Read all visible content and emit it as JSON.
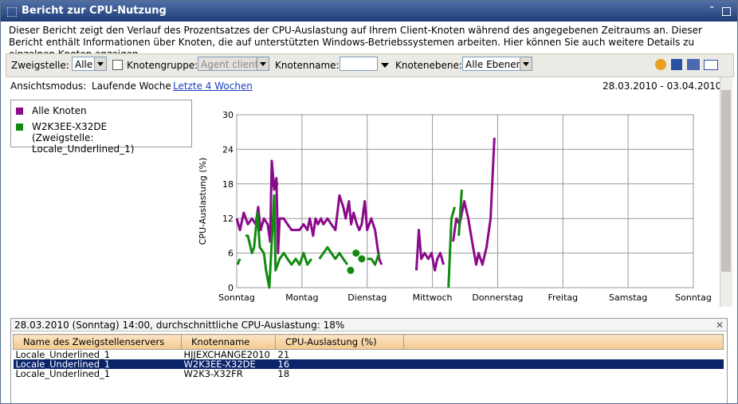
{
  "window": {
    "title": "Bericht zur CPU-Nutzung"
  },
  "description": "Dieser Bericht zeigt den Verlauf des Prozentsatzes der CPU-Auslastung auf Ihrem Client-Knoten während des angegebenen Zeitraums an. Dieser Bericht enthält Informationen über Knoten, die auf unterstützten Windows-Betriebssystemen arbeiten. Hier können Sie auch weitere Details zu einzelnen Knoten anzeigen.",
  "toolbar": {
    "branch_label": "Zweigstelle:",
    "branch_value": "Alle",
    "group_label": "Knotengruppe:",
    "group_value": "Agent client",
    "node_label": "Knotenname:",
    "level_label": "Knotenebene:",
    "level_value": "Alle Ebenen"
  },
  "view": {
    "label": "Ansichtsmodus:",
    "current": "Laufende Woche",
    "link": "Letzte 4 Wochen",
    "range": "28.03.2010 - 03.04.2010"
  },
  "chart_data": {
    "type": "line",
    "ylabel": "CPU-Auslastung  (%)",
    "xlim": [
      0,
      168
    ],
    "xticks": [
      {
        "value": 0,
        "label": "Sonntag"
      },
      {
        "value": 24,
        "label": "Montag"
      },
      {
        "value": 48,
        "label": "Dienstag"
      },
      {
        "value": 72,
        "label": "Mittwoch"
      },
      {
        "value": 96,
        "label": "Donnerstag"
      },
      {
        "value": 120,
        "label": "Freitag"
      },
      {
        "value": 144,
        "label": "Samstag"
      },
      {
        "value": 168,
        "label": "Sonntag"
      }
    ],
    "ylim": [
      0,
      30
    ],
    "yticks": [
      0,
      6,
      12,
      18,
      24,
      30
    ],
    "grid": true,
    "series": [
      {
        "name": "Alle Knoten",
        "color": "#8b0a8b",
        "x": [
          0,
          1.2,
          2.6,
          4.1,
          5.6,
          7,
          7.9,
          8.8,
          10,
          11.4,
          12.3,
          12.9,
          13.8,
          14.6,
          15.2,
          15.8,
          17.3,
          18.7,
          20.2,
          21.7,
          23.1,
          24.6,
          26,
          26.9,
          28.1,
          29,
          29.9,
          31,
          31.9,
          33.4,
          34.8,
          36.3,
          37.8,
          39.2,
          40.1,
          41.3,
          42.1,
          43,
          44.2,
          45.1,
          46,
          47.1,
          48,
          49.5,
          50.9,
          52.4,
          53.3,
          60,
          66.1,
          67,
          67.9,
          69.1,
          70.5,
          71.7,
          72.9,
          73.8,
          74.9,
          76.1,
          77.5,
          79.6,
          80.8,
          82,
          83.7,
          85.2,
          86.6,
          88.1,
          89,
          90.4,
          91.9,
          93.4,
          94.8
        ],
        "values": [
          12,
          10,
          13,
          11,
          12,
          11,
          14,
          10,
          12,
          11,
          8,
          22,
          17,
          19,
          6,
          12,
          12,
          11,
          10,
          10,
          10,
          11,
          10,
          12,
          9,
          12,
          11,
          12,
          11,
          12,
          11,
          10,
          16,
          14,
          12,
          15,
          11,
          13,
          11,
          10,
          11,
          15,
          10,
          12,
          10,
          5,
          4,
          null,
          3,
          10,
          5,
          6,
          5,
          6,
          3,
          5,
          6,
          4,
          null,
          8,
          12,
          11,
          15,
          12,
          8,
          4,
          6,
          4,
          7,
          12,
          26
        ],
        "points": {
          "x": [
            14
          ],
          "values": [
            18
          ]
        }
      },
      {
        "name": "W2K3EE-X32DE\n(Zweigstelle: Locale_Underlined_1)",
        "color": "#108a10",
        "x": [
          0.3,
          1.2,
          2,
          3.2,
          4.1,
          5.6,
          6.4,
          7.6,
          8.5,
          10,
          10.8,
          12,
          13.8,
          14.3,
          15.8,
          17.3,
          18.7,
          20.2,
          21.7,
          23.1,
          24.6,
          26,
          27.5,
          29,
          30.4,
          31.9,
          33.4,
          34.8,
          36.3,
          37.8,
          39.2,
          40.7,
          43.6,
          48,
          49.5,
          50.9,
          52.4,
          65.6,
          77.9,
          79,
          80.2,
          80.8,
          81.7,
          82.8
        ],
        "values": [
          4,
          5,
          null,
          9,
          9,
          6,
          7,
          13,
          7,
          6,
          3,
          0,
          16,
          3,
          5,
          6,
          5,
          4,
          5,
          4,
          6,
          4,
          5,
          null,
          5,
          6,
          7,
          6,
          5,
          6,
          5,
          4,
          null,
          5,
          5,
          4,
          6,
          null,
          0,
          12,
          14,
          null,
          9,
          17
        ],
        "points": {
          "x": [
            41.9,
            43.9,
            46
          ],
          "values": [
            3,
            6,
            5
          ]
        }
      }
    ]
  },
  "details": {
    "summary": "28.03.2010 (Sonntag) 14:00, durchschnittliche CPU-Auslastung: 18%",
    "columns": [
      "Name des Zweigstellenservers",
      "Knotenname",
      "CPU-Auslastung  (%)"
    ],
    "rows": [
      [
        "Locale_Underlined_1",
        "HJJEXCHANGE2010",
        "21"
      ],
      [
        "Locale_Underlined_1",
        "W2K3EE-X32DE",
        "16"
      ],
      [
        "Locale_Underlined_1",
        "W2K3-X32FR",
        "18"
      ]
    ]
  }
}
